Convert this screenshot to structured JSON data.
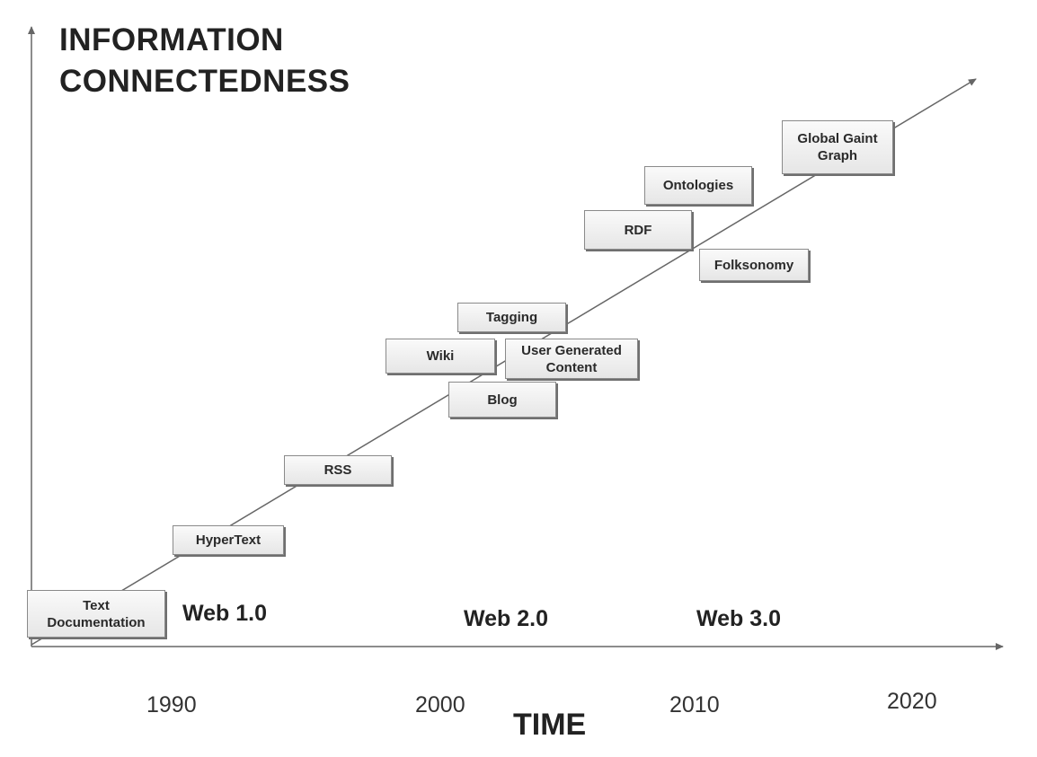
{
  "diagram": {
    "y_axis_label": "INFORMATION\nCONNECTEDNESS",
    "x_axis_label": "TIME",
    "time_ticks": [
      "1990",
      "2000",
      "2010",
      "2020"
    ],
    "eras": [
      "Web 1.0",
      "Web 2.0",
      "Web 3.0"
    ],
    "milestones": [
      "Text\nDocumentation",
      "HyperText",
      "RSS",
      "Blog",
      "Wiki",
      "User Generated\nContent",
      "Tagging",
      "RDF",
      "Ontologies",
      "Folksonomy",
      "Global Gaint\nGraph"
    ],
    "colors": {
      "axis": "#666666",
      "box_border": "#8a8a8a",
      "box_fill": "#f0f0f0"
    }
  }
}
